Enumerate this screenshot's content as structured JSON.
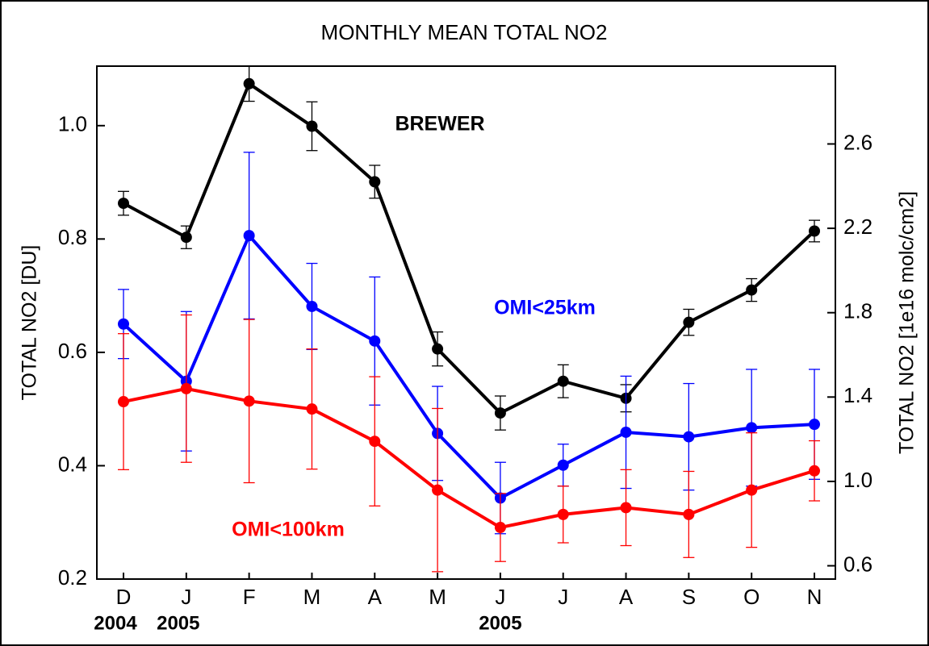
{
  "chart_data": {
    "type": "line",
    "title": "MONTHLY MEAN TOTAL NO2",
    "y_label": "TOTAL NO2 [DU]",
    "y2_label": "TOTAL NO2 [1e16 molc/cm2]",
    "categories": [
      "D",
      "J",
      "F",
      "M",
      "A",
      "M",
      "J",
      "J",
      "A",
      "S",
      "O",
      "N"
    ],
    "year_labels": [
      "2004",
      "2005",
      null,
      null,
      null,
      null,
      "2005",
      null,
      null,
      null,
      null,
      null
    ],
    "series": [
      {
        "name": "BREWER",
        "color": "#000000",
        "values": [
          0.863,
          0.803,
          1.074,
          0.999,
          0.901,
          0.606,
          0.493,
          0.549,
          0.519,
          0.653,
          0.71,
          0.814
        ],
        "errors": [
          0.021,
          0.02,
          0.031,
          0.043,
          0.029,
          0.03,
          0.03,
          0.029,
          0.024,
          0.023,
          0.02,
          0.019
        ]
      },
      {
        "name": "OMI<25km",
        "color": "#0000ff",
        "values": [
          0.65,
          0.549,
          0.806,
          0.681,
          0.62,
          0.457,
          0.343,
          0.401,
          0.459,
          0.451,
          0.467,
          0.473
        ],
        "errors": [
          0.061,
          0.123,
          0.147,
          0.076,
          0.113,
          0.083,
          0.063,
          0.037,
          0.099,
          0.094,
          0.103,
          0.097
        ]
      },
      {
        "name": "OMI<100km",
        "color": "#ff0000",
        "values": [
          0.513,
          0.536,
          0.514,
          0.5,
          0.443,
          0.357,
          0.291,
          0.314,
          0.326,
          0.314,
          0.357,
          0.391
        ],
        "errors": [
          0.12,
          0.13,
          0.144,
          0.106,
          0.114,
          0.144,
          0.06,
          0.05,
          0.067,
          0.076,
          0.101,
          0.053
        ]
      }
    ],
    "ylim": [
      0.2,
      1.105
    ],
    "yticks": [
      0.2,
      0.4,
      0.6,
      0.8,
      {
        "value": 1.0,
        "label": "1.0"
      }
    ],
    "y2lim": [
      0.537,
      2.969
    ],
    "y2ticks": [
      0.6,
      {
        "value": 1.0,
        "label": "1.0"
      },
      1.4,
      1.8,
      2.2,
      2.6
    ]
  }
}
